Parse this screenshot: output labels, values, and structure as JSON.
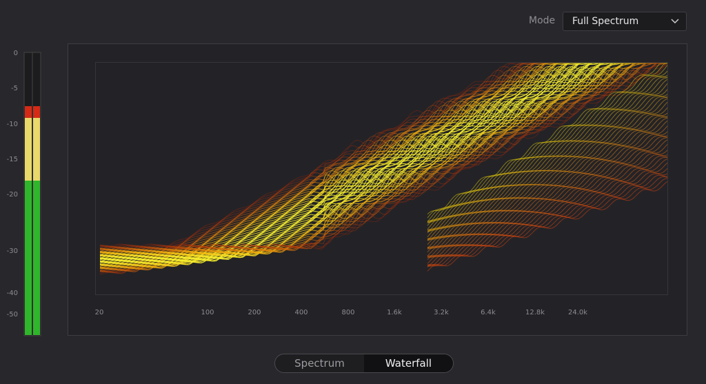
{
  "mode": {
    "label": "Mode",
    "selected": "Full Spectrum"
  },
  "meter": {
    "scale": [
      "0",
      "-5",
      "-10",
      "-15",
      "-20",
      "-30",
      "-40",
      "-50"
    ]
  },
  "spectrum": {
    "x_labels": [
      "20",
      "100",
      "200",
      "400",
      "800",
      "1.6k",
      "3.2k",
      "6.4k",
      "12.8k",
      "24.0k"
    ]
  },
  "view_toggle": {
    "options": [
      "Spectrum",
      "Waterfall"
    ]
  }
}
